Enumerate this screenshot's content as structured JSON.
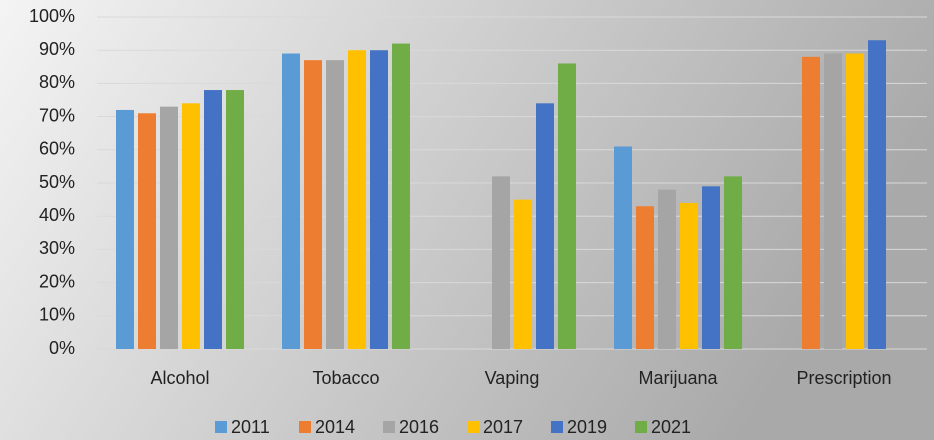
{
  "chart_data": {
    "type": "bar",
    "categories": [
      "Alcohol",
      "Tobacco",
      "Vaping",
      "Marijuana",
      "Prescription"
    ],
    "series": [
      {
        "name": "2011",
        "color": "#5b9bd5",
        "values": [
          72,
          89,
          null,
          61,
          null
        ]
      },
      {
        "name": "2014",
        "color": "#ed7d31",
        "values": [
          71,
          87,
          null,
          43,
          88
        ]
      },
      {
        "name": "2016",
        "color": "#a5a5a5",
        "values": [
          73,
          87,
          52,
          48,
          89
        ]
      },
      {
        "name": "2017",
        "color": "#ffc000",
        "values": [
          74,
          90,
          45,
          44,
          89
        ]
      },
      {
        "name": "2019",
        "color": "#4472c4",
        "values": [
          78,
          90,
          74,
          49,
          93
        ]
      },
      {
        "name": "2021",
        "color": "#70ad47",
        "values": [
          78,
          92,
          86,
          52,
          null
        ]
      }
    ],
    "ylim": [
      0,
      100
    ],
    "yticks": [
      {
        "value": 0,
        "label": "0%"
      },
      {
        "value": 10,
        "label": "10%"
      },
      {
        "value": 20,
        "label": "20%"
      },
      {
        "value": 30,
        "label": "30%"
      },
      {
        "value": 40,
        "label": "40%"
      },
      {
        "value": 50,
        "label": "50%"
      },
      {
        "value": 60,
        "label": "60%"
      },
      {
        "value": 70,
        "label": "70%"
      },
      {
        "value": 80,
        "label": "80%"
      },
      {
        "value": 90,
        "label": "90%"
      },
      {
        "value": 100,
        "label": "100%"
      }
    ],
    "grid": true,
    "legend": "bottom"
  }
}
